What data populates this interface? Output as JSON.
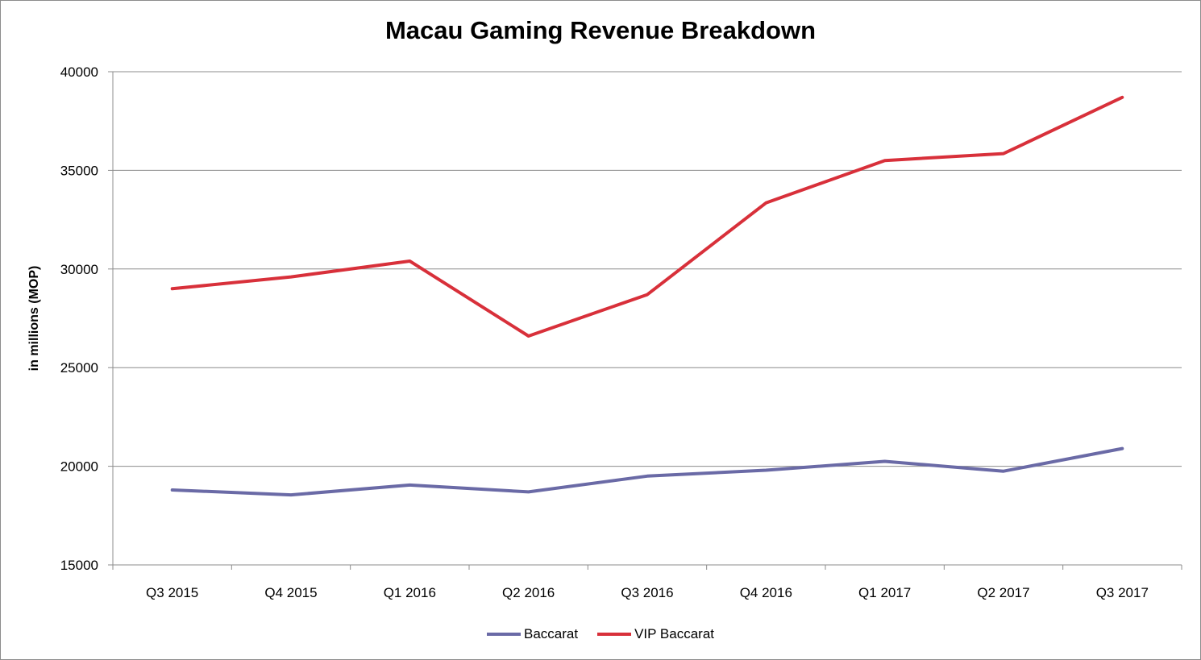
{
  "chart_data": {
    "type": "line",
    "title": "Macau Gaming Revenue Breakdown",
    "xlabel": "",
    "ylabel": "in millions (MOP)",
    "ylim": [
      15000,
      40000
    ],
    "yticks": [
      "15000",
      "20000",
      "25000",
      "30000",
      "35000",
      "40000"
    ],
    "categories": [
      "Q3 2015",
      "Q4 2015",
      "Q1 2016",
      "Q2 2016",
      "Q3 2016",
      "Q4 2016",
      "Q1 2017",
      "Q2 2017",
      "Q3 2017"
    ],
    "series": [
      {
        "name": "Baccarat",
        "color": "#6a6aa6",
        "values": [
          18800,
          18550,
          19050,
          18700,
          19500,
          19800,
          20250,
          19750,
          20900
        ]
      },
      {
        "name": "VIP Baccarat",
        "color": "#d8303a",
        "values": [
          29000,
          29600,
          30400,
          26600,
          28700,
          33350,
          35500,
          35850,
          38700
        ]
      }
    ],
    "grid": true,
    "legend": "bottom"
  }
}
